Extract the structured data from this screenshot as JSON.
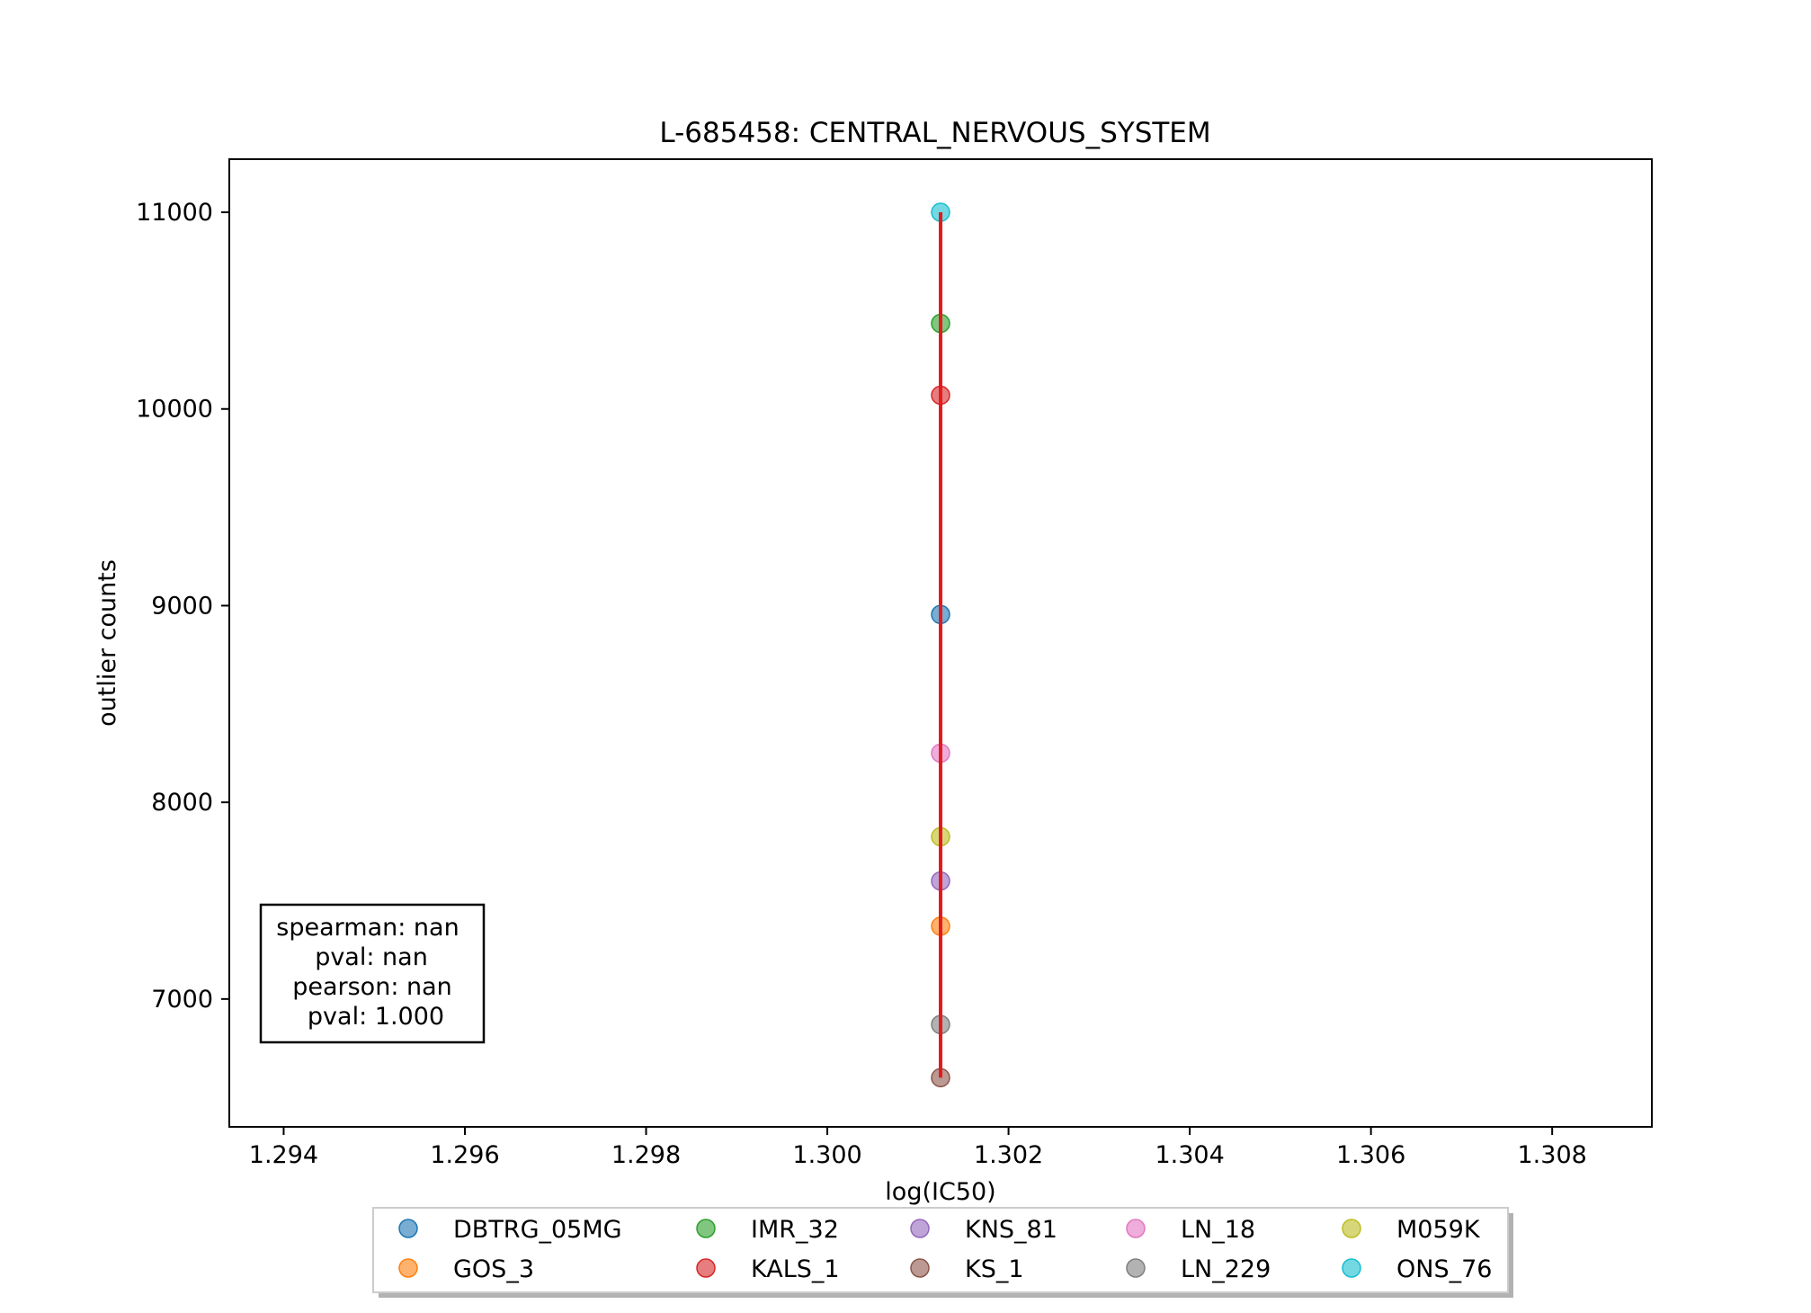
{
  "chart_data": {
    "type": "scatter",
    "title": "L-685458: CENTRAL_NERVOUS_SYSTEM",
    "xlabel": "log(IC50)",
    "ylabel": "outlier counts",
    "xlim": [
      1.2934,
      1.3091
    ],
    "ylim": [
      6350,
      11270
    ],
    "xticks": [
      1.294,
      1.296,
      1.298,
      1.3,
      1.302,
      1.304,
      1.306,
      1.308
    ],
    "xtick_labels": [
      "1.294",
      "1.296",
      "1.298",
      "1.300",
      "1.302",
      "1.304",
      "1.306",
      "1.308"
    ],
    "yticks": [
      7000,
      8000,
      9000,
      10000,
      11000
    ],
    "ytick_labels": [
      "7000",
      "8000",
      "9000",
      "10000",
      "11000"
    ],
    "grid": false,
    "legend_position": "below",
    "series": [
      {
        "name": "DBTRG_05MG",
        "color": "#1f77b4",
        "x": [
          1.30125
        ],
        "y": [
          8955
        ]
      },
      {
        "name": "GOS_3",
        "color": "#ff7f0e",
        "x": [
          1.30125
        ],
        "y": [
          7370
        ]
      },
      {
        "name": "IMR_32",
        "color": "#2ca02c",
        "x": [
          1.30125
        ],
        "y": [
          10435
        ]
      },
      {
        "name": "KALS_1",
        "color": "#d62728",
        "x": [
          1.30125
        ],
        "y": [
          10070
        ]
      },
      {
        "name": "KNS_81",
        "color": "#9467bd",
        "x": [
          1.30125
        ],
        "y": [
          7600
        ]
      },
      {
        "name": "KS_1",
        "color": "#8c564b",
        "x": [
          1.30125
        ],
        "y": [
          6600
        ]
      },
      {
        "name": "LN_18",
        "color": "#e377c2",
        "x": [
          1.30125
        ],
        "y": [
          8250
        ]
      },
      {
        "name": "LN_229",
        "color": "#7f7f7f",
        "x": [
          1.30125
        ],
        "y": [
          6870
        ]
      },
      {
        "name": "M059K",
        "color": "#bcbd22",
        "x": [
          1.30125
        ],
        "y": [
          7825
        ]
      },
      {
        "name": "ONS_76",
        "color": "#17becf",
        "x": [
          1.30125
        ],
        "y": [
          11000
        ]
      }
    ],
    "fit_line": {
      "color": "#e41a1c",
      "x": [
        1.30125,
        1.30125
      ],
      "y": [
        6600,
        11000
      ]
    },
    "stats_box": {
      "lines": [
        "spearman: nan",
        "pval: nan",
        "pearson: nan",
        "pval: 1.000"
      ]
    }
  }
}
